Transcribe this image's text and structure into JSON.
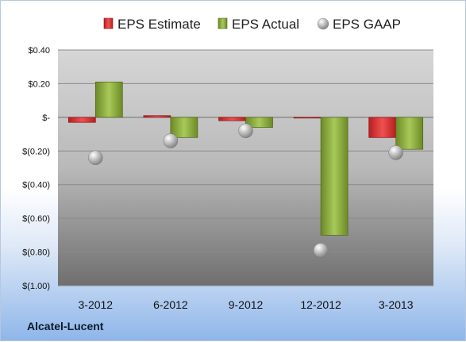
{
  "company": "Alcatel-Lucent",
  "chart_data": {
    "type": "bar",
    "categories": [
      "3-2012",
      "6-2012",
      "9-2012",
      "12-2012",
      "3-2013"
    ],
    "series": [
      {
        "name": "EPS Estimate",
        "kind": "bar",
        "color": "#d42f2f",
        "values": [
          -0.03,
          0.01,
          -0.02,
          0.0,
          -0.12
        ]
      },
      {
        "name": "EPS Actual",
        "kind": "bar",
        "color": "#8aab3a",
        "values": [
          0.21,
          -0.12,
          -0.06,
          -0.7,
          -0.19
        ]
      },
      {
        "name": "EPS GAAP",
        "kind": "marker",
        "color": "#b8b8b8",
        "values": [
          -0.24,
          -0.14,
          -0.08,
          -0.79,
          -0.21
        ]
      }
    ],
    "yticks": [
      0.4,
      0.2,
      0.0,
      -0.2,
      -0.4,
      -0.6,
      -0.8,
      -1.0
    ],
    "ytick_labels": [
      "$0.40",
      "$0.20",
      "$-",
      "$(0.20)",
      "$(0.40)",
      "$(0.60)",
      "$(0.80)",
      "$(1.00)"
    ],
    "ylim": [
      -1.0,
      0.4
    ],
    "grid": true,
    "legend_position": "top"
  }
}
